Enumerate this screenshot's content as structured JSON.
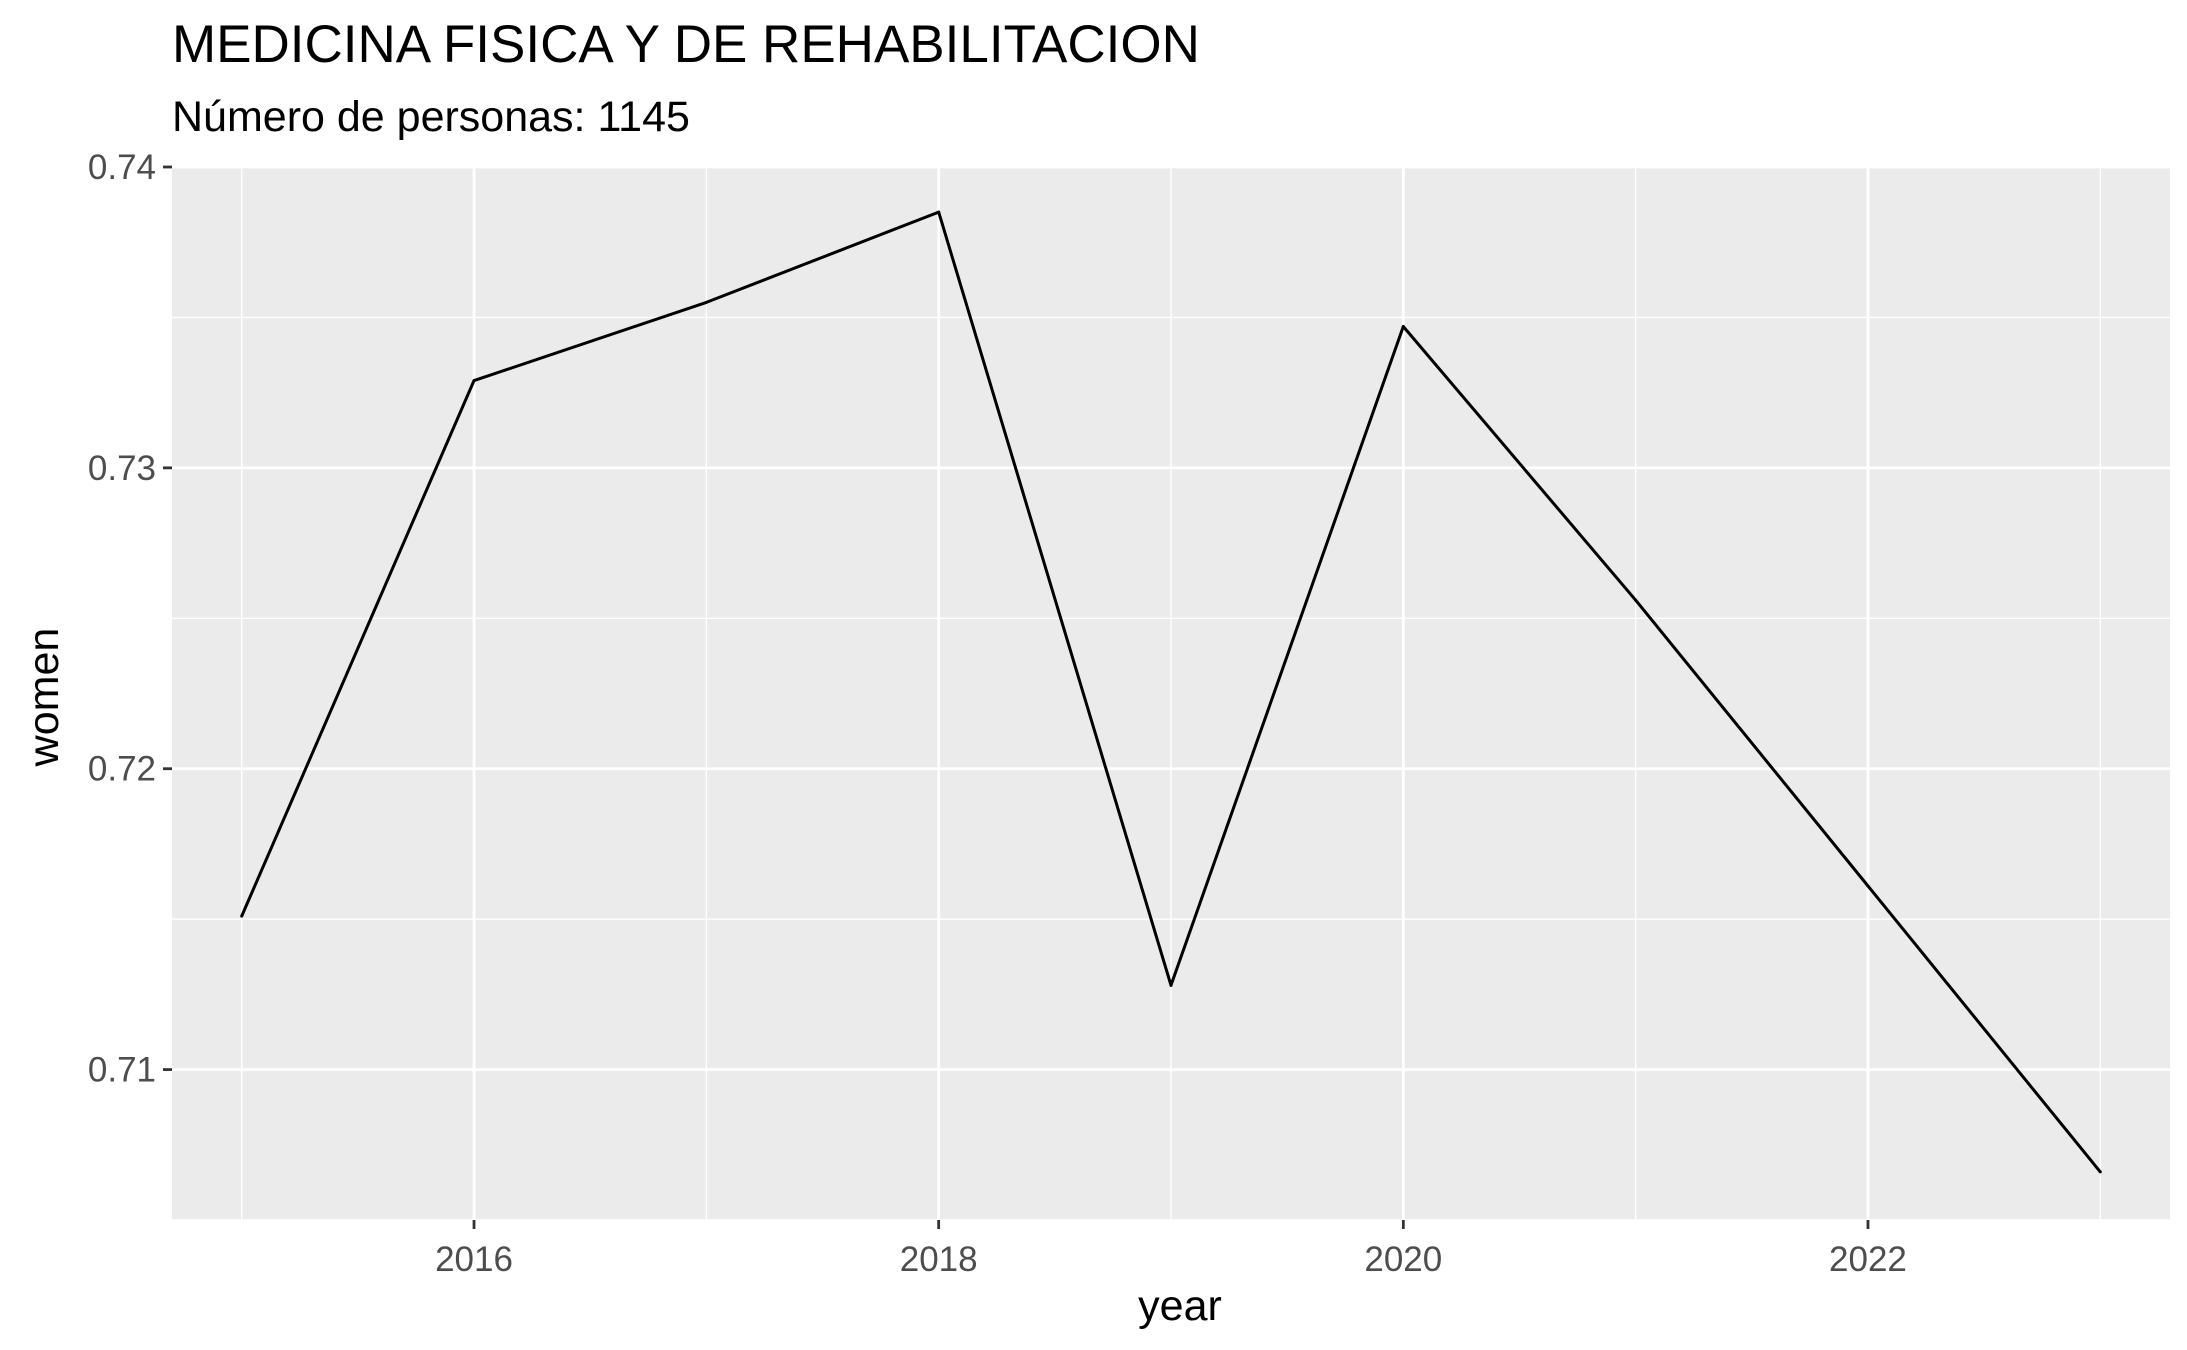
{
  "chart_data": {
    "type": "line",
    "title": "MEDICINA FISICA Y DE REHABILITACION",
    "subtitle": "Número de personas: 1145",
    "xlabel": "year",
    "ylabel": "women",
    "x": [
      2015,
      2016,
      2017,
      2018,
      2019,
      2020,
      2021,
      2022,
      2023
    ],
    "values": [
      0.7151,
      0.7329,
      0.7355,
      0.7385,
      0.7128,
      0.7347,
      0.7256,
      0.7161,
      0.7066
    ],
    "xlim": [
      2014.7,
      2023.3
    ],
    "ylim": [
      0.705,
      0.74
    ],
    "x_ticks": [
      2016,
      2018,
      2020,
      2022
    ],
    "x_tick_labels": [
      "2016",
      "2018",
      "2020",
      "2022"
    ],
    "y_ticks": [
      0.71,
      0.72,
      0.73,
      0.74
    ],
    "y_tick_labels": [
      "0.71",
      "0.72",
      "0.73",
      "0.74"
    ],
    "line_color": "#000000",
    "panel_background": "#ebebeb",
    "grid": true
  }
}
